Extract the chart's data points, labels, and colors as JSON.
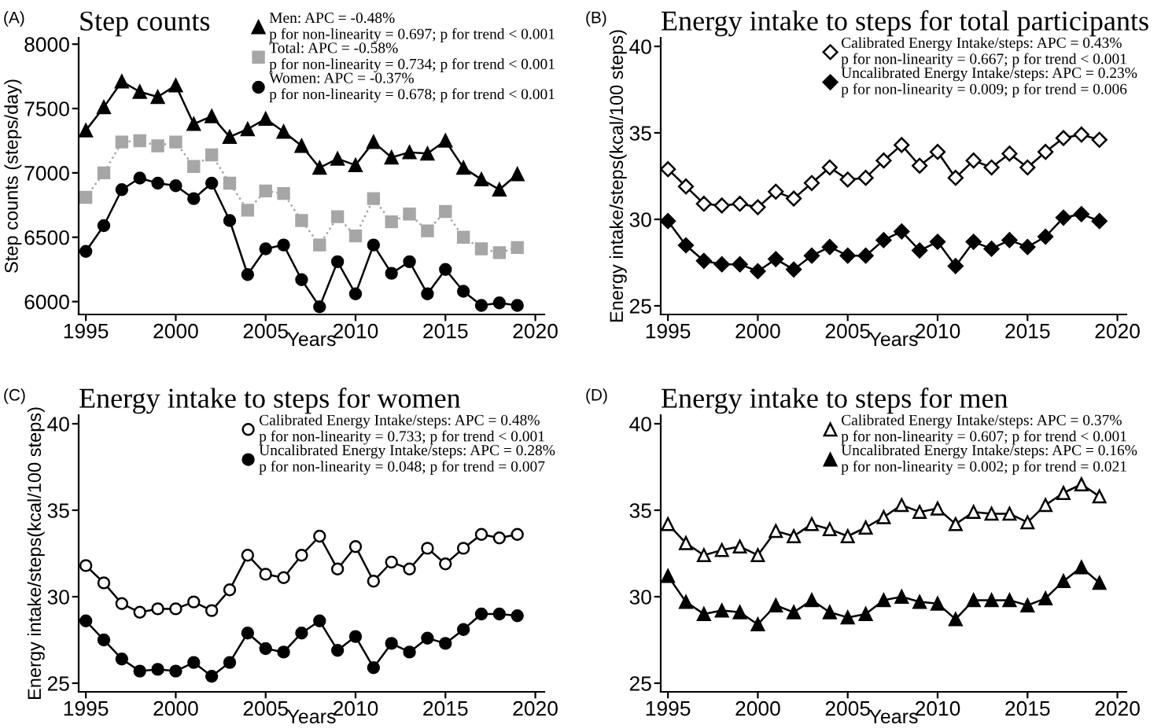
{
  "chart_data": [
    {
      "type": "line",
      "title": "Step counts",
      "annotations": [
        "(A)"
      ],
      "xlabel": "Years",
      "ylabel": "Step counts (steps/day)",
      "xlim": [
        1994.6,
        2020.5
      ],
      "xticks": [
        1995,
        2000,
        2005,
        2010,
        2015,
        2020
      ],
      "ylim": [
        5900,
        8050
      ],
      "yticks": [
        6000,
        6500,
        7000,
        7500,
        8000
      ],
      "legend": "top right",
      "grid": false,
      "x": [
        1995,
        1996,
        1997,
        1998,
        1999,
        2000,
        2001,
        2002,
        2003,
        2004,
        2005,
        2006,
        2007,
        2008,
        2009,
        2010,
        2011,
        2012,
        2013,
        2014,
        2015,
        2016,
        2017,
        2018,
        2019
      ],
      "series": [
        {
          "name": "Men: APC = -0.48%\np for non-linearity = 0.697; p for trend < 0.001",
          "color": "#000000",
          "marker": "triangle",
          "line_style": "solid",
          "values": [
            7330,
            7510,
            7710,
            7630,
            7590,
            7680,
            7380,
            7440,
            7280,
            7340,
            7420,
            7320,
            7210,
            7040,
            7110,
            7060,
            7240,
            7120,
            7160,
            7150,
            7250,
            7040,
            6950,
            6870,
            6990
          ]
        },
        {
          "name": "Total: APC = -0.58%\np for non-linearity = 0.734; p for trend < 0.001",
          "color": "#a6a6a6",
          "marker": "square",
          "line_style": "dotted",
          "values": [
            6810,
            7000,
            7240,
            7250,
            7210,
            7240,
            7050,
            7140,
            6920,
            6710,
            6860,
            6840,
            6630,
            6440,
            6660,
            6510,
            6800,
            6620,
            6680,
            6550,
            6700,
            6500,
            6410,
            6380,
            6420
          ]
        },
        {
          "name": "Women: APC = -0.37%\np for non-linearity = 0.678; p for trend < 0.001",
          "color": "#000000",
          "marker": "circle",
          "line_style": "solid",
          "values": [
            6390,
            6590,
            6870,
            6960,
            6920,
            6900,
            6800,
            6920,
            6630,
            6210,
            6410,
            6440,
            6170,
            5960,
            6310,
            6060,
            6440,
            6220,
            6310,
            6060,
            6250,
            6080,
            5970,
            5990,
            5970
          ]
        }
      ]
    },
    {
      "type": "line",
      "title": "Energy intake to steps for total participants",
      "annotations": [
        "(B)"
      ],
      "xlabel": "Years",
      "ylabel": "Energy intake/steps(kcal/100 steps)",
      "xlim": [
        1994.6,
        2020.5
      ],
      "xticks": [
        1995,
        2000,
        2005,
        2010,
        2015,
        2020
      ],
      "ylim": [
        24.5,
        40.5
      ],
      "yticks": [
        25,
        30,
        35,
        40
      ],
      "legend": "top right",
      "grid": false,
      "x": [
        1995,
        1996,
        1997,
        1998,
        1999,
        2000,
        2001,
        2002,
        2003,
        2004,
        2005,
        2006,
        2007,
        2008,
        2009,
        2010,
        2011,
        2012,
        2013,
        2014,
        2015,
        2016,
        2017,
        2018,
        2019
      ],
      "series": [
        {
          "name": "Calibrated Energy Intake/steps: APC = 0.43%\np for non-linearity = 0.667; p for trend < 0.001",
          "color": "#ffffff",
          "marker": "diamond",
          "line_style": "solid",
          "values": [
            32.9,
            31.9,
            30.9,
            30.8,
            30.9,
            30.7,
            31.6,
            31.2,
            32.1,
            33.0,
            32.3,
            32.4,
            33.4,
            34.3,
            33.1,
            33.9,
            32.4,
            33.4,
            33.0,
            33.8,
            33.0,
            33.9,
            34.7,
            34.9,
            34.6
          ]
        },
        {
          "name": "Uncalibrated Energy Intake/steps: APC = 0.23%\np for non-linearity = 0.009; p for trend = 0.006",
          "color": "#000000",
          "marker": "diamond",
          "line_style": "solid",
          "values": [
            29.9,
            28.5,
            27.6,
            27.4,
            27.4,
            27.0,
            27.7,
            27.1,
            27.9,
            28.4,
            27.9,
            27.9,
            28.8,
            29.3,
            28.2,
            28.7,
            27.3,
            28.7,
            28.3,
            28.8,
            28.4,
            29.0,
            30.1,
            30.3,
            29.9
          ]
        }
      ]
    },
    {
      "type": "line",
      "title": "Energy intake to steps for women",
      "annotations": [
        "(C)"
      ],
      "xlabel": "Years",
      "ylabel": "Energy intake/steps(kcal/100 steps)",
      "xlim": [
        1994.6,
        2020.5
      ],
      "xticks": [
        1995,
        2000,
        2005,
        2010,
        2015,
        2020
      ],
      "ylim": [
        24.5,
        40.5
      ],
      "yticks": [
        25,
        30,
        35,
        40
      ],
      "legend": "top right",
      "grid": false,
      "x": [
        1995,
        1996,
        1997,
        1998,
        1999,
        2000,
        2001,
        2002,
        2003,
        2004,
        2005,
        2006,
        2007,
        2008,
        2009,
        2010,
        2011,
        2012,
        2013,
        2014,
        2015,
        2016,
        2017,
        2018,
        2019
      ],
      "series": [
        {
          "name": "Calibrated Energy Intake/steps: APC = 0.48%\np for non-linearity = 0.733; p for trend < 0.001",
          "color": "#ffffff",
          "marker": "circle",
          "line_style": "solid",
          "values": [
            31.8,
            30.8,
            29.6,
            29.1,
            29.3,
            29.3,
            29.7,
            29.2,
            30.4,
            32.4,
            31.3,
            31.1,
            32.4,
            33.5,
            31.6,
            32.9,
            30.9,
            32.0,
            31.6,
            32.8,
            31.9,
            32.8,
            33.6,
            33.4,
            33.6
          ]
        },
        {
          "name": "Uncalibrated Energy Intake/steps: APC = 0.28%\np for non-linearity = 0.048; p for trend = 0.007",
          "color": "#000000",
          "marker": "circle",
          "line_style": "solid",
          "values": [
            28.6,
            27.5,
            26.4,
            25.7,
            25.8,
            25.7,
            26.2,
            25.4,
            26.2,
            27.9,
            27.0,
            26.8,
            27.9,
            28.6,
            26.9,
            27.7,
            25.9,
            27.3,
            26.8,
            27.6,
            27.3,
            28.1,
            29.0,
            29.0,
            28.9
          ]
        }
      ]
    },
    {
      "type": "line",
      "title": "Energy intake to steps for men",
      "annotations": [
        "(D)"
      ],
      "xlabel": "Years",
      "xlim": [
        1994.6,
        2020.5
      ],
      "xticks": [
        1995,
        2000,
        2005,
        2010,
        2015,
        2020
      ],
      "ylim": [
        24.5,
        40.5
      ],
      "yticks": [
        25,
        30,
        35,
        40
      ],
      "legend": "top right",
      "grid": false,
      "x": [
        1995,
        1996,
        1997,
        1998,
        1999,
        2000,
        2001,
        2002,
        2003,
        2004,
        2005,
        2006,
        2007,
        2008,
        2009,
        2010,
        2011,
        2012,
        2013,
        2014,
        2015,
        2016,
        2017,
        2018,
        2019
      ],
      "series": [
        {
          "name": "Calibrated Energy Intake/steps: APC = 0.37%\np for non-linearity = 0.607; p for trend < 0.001",
          "color": "#ffffff",
          "marker": "triangle",
          "line_style": "solid",
          "values": [
            34.2,
            33.1,
            32.4,
            32.7,
            32.9,
            32.4,
            33.8,
            33.5,
            34.2,
            33.9,
            33.5,
            34.0,
            34.6,
            35.3,
            34.9,
            35.1,
            34.2,
            34.9,
            34.8,
            34.8,
            34.3,
            35.3,
            36.0,
            36.5,
            35.8
          ]
        },
        {
          "name": "Uncalibrated Energy Intake/steps: APC = 0.16%\np for non-linearity = 0.002; p for trend = 0.021",
          "color": "#000000",
          "marker": "triangle",
          "line_style": "solid",
          "values": [
            31.2,
            29.7,
            29.0,
            29.2,
            29.1,
            28.4,
            29.5,
            29.1,
            29.8,
            29.1,
            28.8,
            29.0,
            29.8,
            30.0,
            29.7,
            29.6,
            28.7,
            29.8,
            29.8,
            29.8,
            29.5,
            29.9,
            30.9,
            31.7,
            30.8
          ]
        }
      ]
    }
  ]
}
